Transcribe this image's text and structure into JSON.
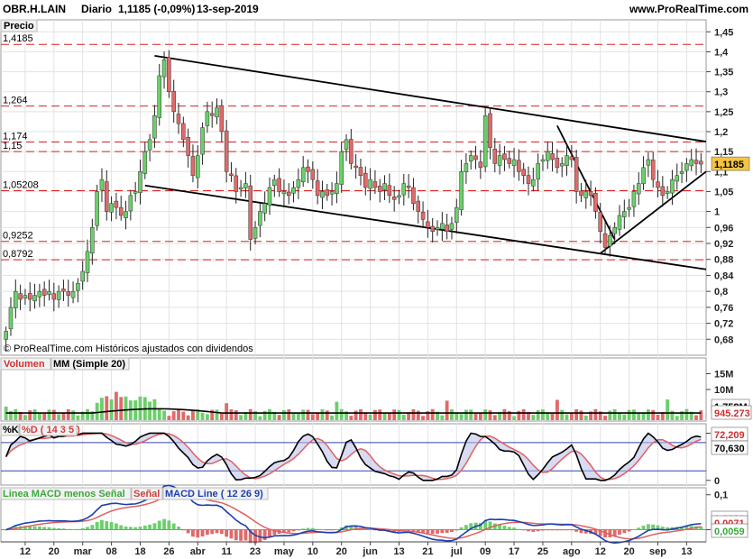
{
  "header": {
    "symbol": "OBR.H.LAIN",
    "period": "Diario",
    "quote": "1,1185 (-0,09%)",
    "date": "13-sep-2019",
    "site": "www.ProRealTime.com"
  },
  "panels": {
    "price": {
      "title": "Precio",
      "copyright": "© ProRealTime.com Históricos ajustados con dividendos"
    },
    "volume": {
      "title1": "Volumen",
      "title2": "MM (Simple 20)"
    },
    "stoch": {
      "title1": "%K",
      "title2": "%D ( 14 3 5 )"
    },
    "macd": {
      "title1": "Linea MACD menos Señal",
      "title2": "Señal",
      "title3": "MACD Line ( 12 26 9)"
    }
  },
  "colors": {
    "up": "#6ccf6c",
    "down": "#e06a6a",
    "dash": "#d62020",
    "accent": "#f5c542",
    "grid": "#e2e2e2",
    "blue": "#1c3fb0"
  },
  "chart_data": [
    {
      "type": "candlestick",
      "title": "Precio",
      "ylim": [
        0.64,
        1.48
      ],
      "yticks": [
        "1,45",
        "1,4",
        "1,35",
        "1,3",
        "1,25",
        "1,2",
        "1,15",
        "1,1",
        "1,05",
        "1",
        "0,96",
        "0,92",
        "0,88",
        "0,84",
        "0,8",
        "0,76",
        "0,72",
        "0,68"
      ],
      "xtick_labels": [
        "12",
        "20",
        "mar",
        "08",
        "18",
        "26",
        "abr",
        "11",
        "23",
        "may",
        "10",
        "20",
        "jun",
        "13",
        "21",
        "jul",
        "09",
        "17",
        "25",
        "ago",
        "12",
        "20",
        "sep",
        "13"
      ],
      "horizontal_levels": [
        {
          "value": 1.4185,
          "label": "1,4185"
        },
        {
          "value": 1.264,
          "label": "1,264"
        },
        {
          "value": 1.174,
          "label": "1,174"
        },
        {
          "value": 1.15,
          "label": "1,15"
        },
        {
          "value": 1.05208,
          "label": "1,05208"
        },
        {
          "value": 0.9252,
          "label": "0,9252"
        },
        {
          "value": 0.8792,
          "label": "0,8792"
        }
      ],
      "last_value": "1,1185",
      "closes": [
        0.7,
        0.76,
        0.8,
        0.78,
        0.79,
        0.78,
        0.79,
        0.8,
        0.79,
        0.8,
        0.78,
        0.8,
        0.8,
        0.79,
        0.8,
        0.82,
        0.85,
        0.9,
        0.96,
        1.05,
        1.08,
        1.0,
        1.02,
        1.01,
        0.99,
        1.0,
        1.04,
        1.05,
        1.1,
        1.15,
        1.18,
        1.24,
        1.34,
        1.38,
        1.3,
        1.25,
        1.22,
        1.18,
        1.14,
        1.09,
        1.14,
        1.21,
        1.25,
        1.24,
        1.26,
        1.2,
        1.1,
        1.09,
        1.05,
        1.06,
        1.07,
        0.93,
        0.96,
        1.0,
        1.02,
        1.06,
        1.08,
        1.05,
        1.05,
        1.04,
        1.06,
        1.08,
        1.11,
        1.1,
        1.08,
        1.04,
        1.05,
        1.04,
        1.05,
        1.07,
        1.15,
        1.18,
        1.12,
        1.11,
        1.09,
        1.06,
        1.08,
        1.06,
        1.05,
        1.07,
        1.04,
        1.03,
        1.04,
        1.07,
        1.06,
        1.02,
        1.0,
        0.98,
        0.96,
        0.95,
        0.96,
        0.97,
        0.95,
        0.97,
        1.01,
        1.1,
        1.12,
        1.14,
        1.13,
        1.11,
        1.24,
        1.16,
        1.12,
        1.14,
        1.13,
        1.12,
        1.13,
        1.1,
        1.09,
        1.07,
        1.08,
        1.12,
        1.13,
        1.15,
        1.13,
        1.11,
        1.12,
        1.14,
        1.13,
        1.05,
        1.04,
        1.05,
        1.04,
        1.0,
        0.95,
        0.91,
        0.94,
        0.96,
        0.99,
        1.0,
        1.01,
        1.05,
        1.07,
        1.11,
        1.13,
        1.08,
        1.06,
        1.04,
        1.05,
        1.08,
        1.09,
        1.1,
        1.12,
        1.13,
        1.12,
        1.1185
      ]
    },
    {
      "type": "bar",
      "title": "Volumen",
      "series": [
        {
          "name": "MM (Simple 20)"
        }
      ],
      "yticks": [
        "15M",
        "10M"
      ],
      "last_values": [
        "1,758M",
        "945.273"
      ]
    },
    {
      "type": "line",
      "title": "%K %D ( 14 3 5 )",
      "ylim": [
        -5,
        105
      ],
      "yticks": [
        "100",
        "0"
      ],
      "last_values": [
        "72,209",
        "70,630"
      ]
    },
    {
      "type": "line",
      "title": "MACD Line ( 12 26 9)",
      "yticks": [
        "0,1",
        "0"
      ],
      "last_values": [
        "0,0131",
        "0,0071",
        "0,0059"
      ]
    }
  ]
}
